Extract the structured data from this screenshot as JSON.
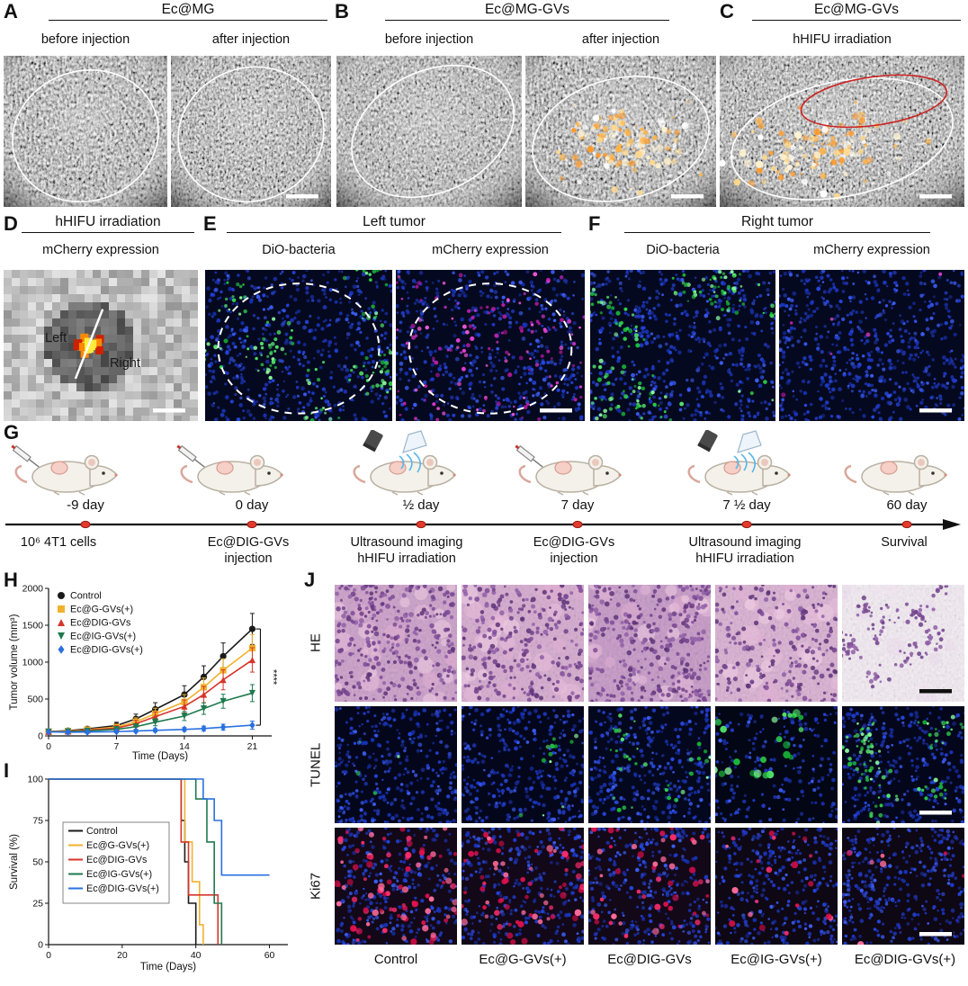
{
  "panels": {
    "A": {
      "letter": "A",
      "title": "Ec@MG",
      "sub_left": "before injection",
      "sub_right": "after injection"
    },
    "B": {
      "letter": "B",
      "title": "Ec@MG-GVs",
      "sub_left": "before injection",
      "sub_right": "after injection"
    },
    "C": {
      "letter": "C",
      "title": "Ec@MG-GVs",
      "sub": "hHIFU irradiation"
    },
    "D": {
      "letter": "D",
      "title": "hHIFU irradiation",
      "sub": "mCherry expression",
      "label_left": "Left",
      "label_right": "Right"
    },
    "E": {
      "letter": "E",
      "title": "Left tumor",
      "sub_left": "DiO-bacteria",
      "sub_right": "mCherry expression"
    },
    "F": {
      "letter": "F",
      "title": "Right tumor",
      "sub_left": "DiO-bacteria",
      "sub_right": "mCherry expression"
    },
    "G": {
      "letter": "G",
      "events": [
        {
          "day": "-9 day",
          "desc": "10⁶ 4T1 cells"
        },
        {
          "day": "0 day",
          "desc": "Ec@DIG-GVs\ninjection"
        },
        {
          "day": "½ day",
          "desc": "Ultrasound imaging\nhHIFU irradiation"
        },
        {
          "day": "7 day",
          "desc": "Ec@DIG-GVs\ninjection"
        },
        {
          "day": "7 ½ day",
          "desc": "Ultrasound imaging\nhHIFU irradiation"
        },
        {
          "day": "60 day",
          "desc": "Survival"
        }
      ]
    },
    "H": {
      "letter": "H"
    },
    "I": {
      "letter": "I"
    },
    "J": {
      "letter": "J",
      "row_labels": [
        "HE",
        "TUNEL",
        "Ki67"
      ],
      "col_labels": [
        "Control",
        "Ec@G-GVs(+)",
        "Ec@DIG-GVs",
        "Ec@IG-GVs(+)",
        "Ec@DIG-GVs(+)"
      ]
    }
  },
  "chart_data": [
    {
      "id": "tumor_volume",
      "type": "line",
      "xlabel": "Time (Days)",
      "ylabel": "Tumor volume (mm³)",
      "xlim": [
        0,
        23
      ],
      "ylim": [
        0,
        2000
      ],
      "xticks": [
        0,
        7,
        14,
        21
      ],
      "yticks": [
        0,
        500,
        1000,
        1500,
        2000
      ],
      "x": [
        0,
        2,
        4,
        7,
        9,
        11,
        14,
        16,
        18,
        21
      ],
      "series": [
        {
          "name": "Control",
          "color": "#1a1a1a",
          "marker": "circle",
          "values": [
            60,
            70,
            95,
            140,
            230,
            360,
            560,
            800,
            1080,
            1450
          ],
          "err": [
            20,
            25,
            30,
            45,
            65,
            90,
            120,
            150,
            180,
            210
          ]
        },
        {
          "name": "Ec@G-GVs(+)",
          "color": "#f0b22c",
          "marker": "square",
          "values": [
            60,
            65,
            85,
            120,
            190,
            300,
            460,
            660,
            890,
            1190
          ],
          "err": [
            18,
            22,
            28,
            38,
            55,
            75,
            100,
            125,
            155,
            185
          ]
        },
        {
          "name": "Ec@DIG-GVs",
          "color": "#d6352b",
          "marker": "triangle-up",
          "values": [
            58,
            62,
            78,
            105,
            165,
            260,
            400,
            560,
            760,
            1030
          ],
          "err": [
            18,
            20,
            25,
            34,
            48,
            65,
            88,
            110,
            135,
            165
          ]
        },
        {
          "name": "Ec@IG-GVs(+)",
          "color": "#1e7a4e",
          "marker": "triangle-down",
          "values": [
            55,
            58,
            68,
            88,
            125,
            185,
            270,
            370,
            470,
            580
          ],
          "err": [
            15,
            16,
            20,
            26,
            36,
            48,
            62,
            78,
            95,
            115
          ]
        },
        {
          "name": "Ec@DIG-GVs(+)",
          "color": "#2970e0",
          "marker": "diamond",
          "values": [
            55,
            50,
            52,
            58,
            66,
            76,
            88,
            100,
            118,
            145
          ],
          "err": [
            12,
            12,
            14,
            16,
            18,
            22,
            26,
            32,
            40,
            55
          ]
        }
      ],
      "significance": "****"
    },
    {
      "id": "survival",
      "type": "step",
      "xlabel": "Time (Days)",
      "ylabel": "Survival (%)",
      "xlim": [
        0,
        65
      ],
      "ylim": [
        0,
        100
      ],
      "xticks": [
        0,
        20,
        40,
        60
      ],
      "yticks": [
        0,
        25,
        50,
        75,
        100
      ],
      "series": [
        {
          "name": "Control",
          "color": "#1a1a1a",
          "points": [
            [
              0,
              100
            ],
            [
              36,
              100
            ],
            [
              36,
              75
            ],
            [
              37,
              75
            ],
            [
              37,
              50
            ],
            [
              38,
              50
            ],
            [
              38,
              25
            ],
            [
              40,
              25
            ],
            [
              40,
              0
            ]
          ]
        },
        {
          "name": "Ec@G-GVs(+)",
          "color": "#f0b22c",
          "points": [
            [
              0,
              100
            ],
            [
              37,
              100
            ],
            [
              37,
              62
            ],
            [
              39,
              62
            ],
            [
              39,
              38
            ],
            [
              41,
              38
            ],
            [
              41,
              12
            ],
            [
              42,
              12
            ],
            [
              42,
              0
            ]
          ]
        },
        {
          "name": "Ec@DIG-GVs",
          "color": "#d6352b",
          "points": [
            [
              0,
              100
            ],
            [
              36,
              100
            ],
            [
              36,
              62
            ],
            [
              38,
              62
            ],
            [
              38,
              30
            ],
            [
              46,
              30
            ],
            [
              46,
              0
            ]
          ]
        },
        {
          "name": "Ec@IG-GVs(+)",
          "color": "#1e7a4e",
          "points": [
            [
              0,
              100
            ],
            [
              40,
              100
            ],
            [
              40,
              88
            ],
            [
              43,
              88
            ],
            [
              43,
              62
            ],
            [
              45,
              62
            ],
            [
              45,
              25
            ],
            [
              47,
              25
            ],
            [
              47,
              0
            ]
          ]
        },
        {
          "name": "Ec@DIG-GVs(+)",
          "color": "#2970e0",
          "points": [
            [
              0,
              100
            ],
            [
              42,
              100
            ],
            [
              42,
              88
            ],
            [
              45,
              88
            ],
            [
              45,
              75
            ],
            [
              47,
              75
            ],
            [
              47,
              42
            ],
            [
              60,
              42
            ]
          ]
        }
      ]
    }
  ]
}
